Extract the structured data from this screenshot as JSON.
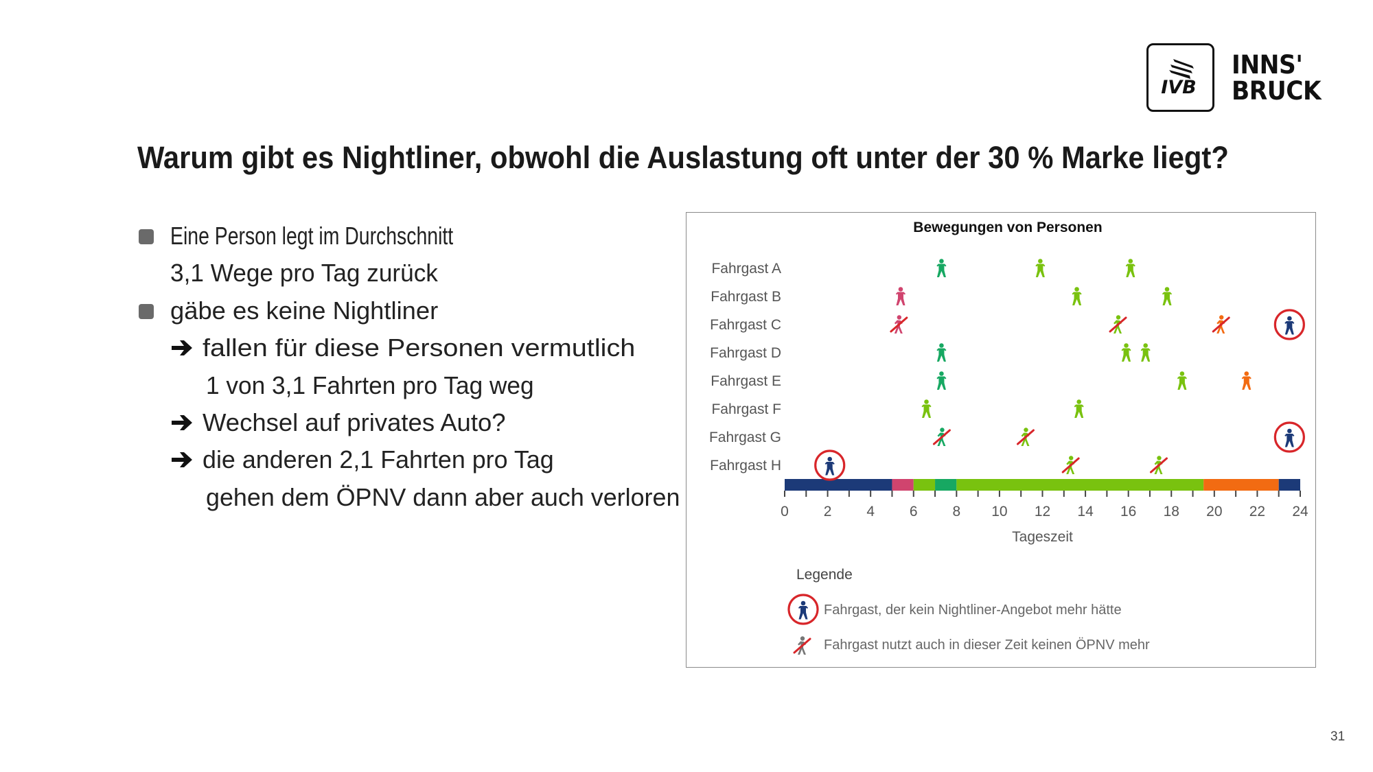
{
  "logo": {
    "mark_text": "IVB",
    "wordmark_line1": "INNS'",
    "wordmark_line2": "BRUCK"
  },
  "slide": {
    "title": "Warum gibt es Nightliner, obwohl die Auslastung oft unter der 30 % Marke liegt?",
    "page_number": "31"
  },
  "bullets": [
    {
      "type": "bullet",
      "text": "Eine Person legt im Durchschnitt"
    },
    {
      "type": "continuation",
      "text": "3,1 Wege pro Tag zurück"
    },
    {
      "type": "bullet",
      "text": "gäbe es keine Nightliner"
    },
    {
      "type": "arrow",
      "text": "fallen für diese Personen vermutlich"
    },
    {
      "type": "arrow-continuation",
      "text": "1 von 3,1 Fahrten pro Tag weg"
    },
    {
      "type": "arrow",
      "text": "Wechsel auf privates Auto?"
    },
    {
      "type": "arrow",
      "text": "die anderen 2,1 Fahrten pro Tag"
    },
    {
      "type": "arrow-continuation",
      "text": "gehen dem ÖPNV dann aber auch verloren"
    }
  ],
  "colors": {
    "navy": "#1c3a78",
    "pink": "#d0446e",
    "light_green": "#79c20f",
    "teal_green": "#17a862",
    "orange": "#f26b12",
    "red": "#d8262a",
    "bullet_gray": "#6a6a6a"
  },
  "chart_data": {
    "type": "scatter",
    "title": "Bewegungen von Personen",
    "xlabel": "Tageszeit",
    "ylabel": "",
    "xlim": [
      0,
      24
    ],
    "xticks_major": [
      0,
      2,
      4,
      6,
      8,
      10,
      12,
      14,
      16,
      18,
      20,
      22,
      24
    ],
    "xticks_minor_step": 1,
    "categories": [
      "Fahrgast A",
      "Fahrgast B",
      "Fahrgast C",
      "Fahrgast D",
      "Fahrgast E",
      "Fahrgast F",
      "Fahrgast G",
      "Fahrgast H"
    ],
    "time_bands": [
      {
        "from": 0,
        "to": 5,
        "color": "navy"
      },
      {
        "from": 5,
        "to": 6,
        "color": "pink"
      },
      {
        "from": 6,
        "to": 7,
        "color": "light_green"
      },
      {
        "from": 7,
        "to": 8,
        "color": "teal_green"
      },
      {
        "from": 8,
        "to": 19.5,
        "color": "light_green"
      },
      {
        "from": 19.5,
        "to": 23,
        "color": "orange"
      },
      {
        "from": 23,
        "to": 24,
        "color": "navy"
      }
    ],
    "points": [
      {
        "passenger": "Fahrgast A",
        "hour": 7.3,
        "color": "teal_green",
        "kind": "trip"
      },
      {
        "passenger": "Fahrgast A",
        "hour": 11.9,
        "color": "light_green",
        "kind": "trip"
      },
      {
        "passenger": "Fahrgast A",
        "hour": 16.1,
        "color": "light_green",
        "kind": "trip"
      },
      {
        "passenger": "Fahrgast B",
        "hour": 5.4,
        "color": "pink",
        "kind": "trip"
      },
      {
        "passenger": "Fahrgast B",
        "hour": 13.6,
        "color": "light_green",
        "kind": "trip"
      },
      {
        "passenger": "Fahrgast B",
        "hour": 17.8,
        "color": "light_green",
        "kind": "trip"
      },
      {
        "passenger": "Fahrgast C",
        "hour": 5.3,
        "color": "pink",
        "kind": "lost"
      },
      {
        "passenger": "Fahrgast C",
        "hour": 15.5,
        "color": "light_green",
        "kind": "lost"
      },
      {
        "passenger": "Fahrgast C",
        "hour": 20.3,
        "color": "orange",
        "kind": "lost"
      },
      {
        "passenger": "Fahrgast C",
        "hour": 23.5,
        "color": "navy",
        "kind": "no-nightliner"
      },
      {
        "passenger": "Fahrgast D",
        "hour": 7.3,
        "color": "teal_green",
        "kind": "trip"
      },
      {
        "passenger": "Fahrgast D",
        "hour": 15.9,
        "color": "light_green",
        "kind": "trip"
      },
      {
        "passenger": "Fahrgast D",
        "hour": 16.8,
        "color": "light_green",
        "kind": "trip"
      },
      {
        "passenger": "Fahrgast E",
        "hour": 7.3,
        "color": "teal_green",
        "kind": "trip"
      },
      {
        "passenger": "Fahrgast E",
        "hour": 18.5,
        "color": "light_green",
        "kind": "trip"
      },
      {
        "passenger": "Fahrgast E",
        "hour": 21.5,
        "color": "orange",
        "kind": "trip"
      },
      {
        "passenger": "Fahrgast F",
        "hour": 6.6,
        "color": "light_green",
        "kind": "trip"
      },
      {
        "passenger": "Fahrgast F",
        "hour": 13.7,
        "color": "light_green",
        "kind": "trip"
      },
      {
        "passenger": "Fahrgast G",
        "hour": 7.3,
        "color": "teal_green",
        "kind": "lost"
      },
      {
        "passenger": "Fahrgast G",
        "hour": 11.2,
        "color": "light_green",
        "kind": "lost"
      },
      {
        "passenger": "Fahrgast G",
        "hour": 23.5,
        "color": "navy",
        "kind": "no-nightliner"
      },
      {
        "passenger": "Fahrgast H",
        "hour": 2.1,
        "color": "navy",
        "kind": "no-nightliner"
      },
      {
        "passenger": "Fahrgast H",
        "hour": 13.3,
        "color": "light_green",
        "kind": "lost"
      },
      {
        "passenger": "Fahrgast H",
        "hour": 17.4,
        "color": "light_green",
        "kind": "lost"
      }
    ],
    "legend": {
      "title": "Legende",
      "placement": "bottom-left",
      "items": [
        {
          "kind": "no-nightliner",
          "text": "Fahrgast, der kein Nightliner-Angebot mehr hätte"
        },
        {
          "kind": "lost",
          "text": "Fahrgast nutzt auch in dieser Zeit keinen ÖPNV mehr"
        }
      ]
    }
  }
}
